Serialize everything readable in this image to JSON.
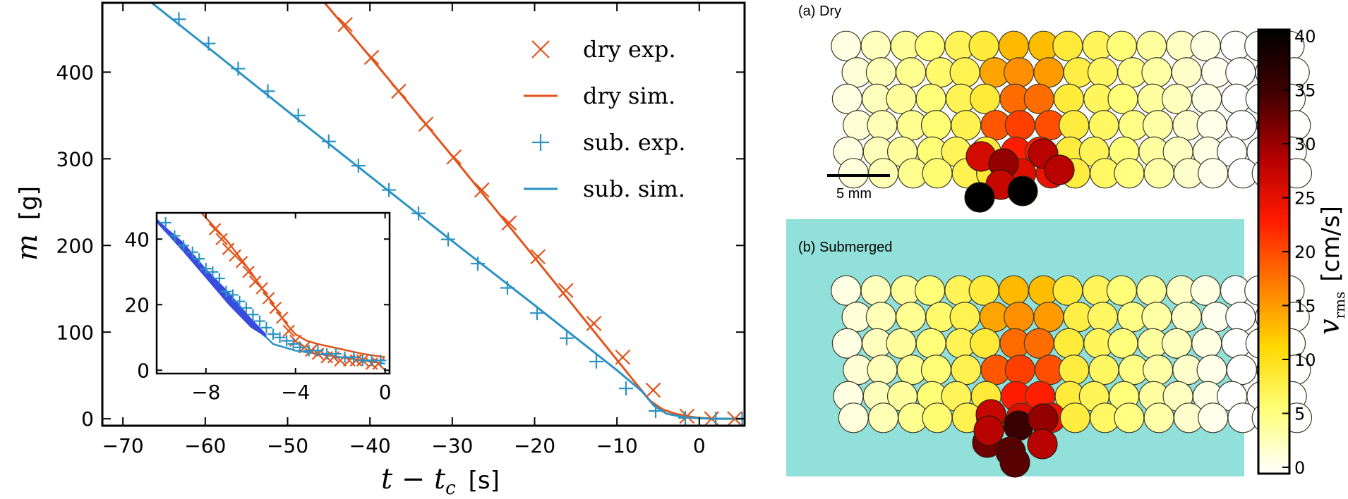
{
  "colors": {
    "dry": "#e2541b",
    "sub": "#2b93c4",
    "inset_band": "#3a4be0",
    "water": "#92e0da"
  },
  "chart_data": [
    {
      "type": "line",
      "xlabel_var": "t − t",
      "xlabel_sub": "c",
      "xlabel_unit": "[s]",
      "ylabel_var": "m",
      "ylabel_unit": "[g]",
      "xlim": [
        -72.5,
        5.5
      ],
      "ylim": [
        -8,
        480
      ],
      "xticks": [
        -70,
        -60,
        -50,
        -40,
        -30,
        -20,
        -10,
        0
      ],
      "xtick_labels": [
        "−70",
        "−60",
        "−50",
        "−40",
        "−30",
        "−20",
        "−10",
        "0"
      ],
      "yticks": [
        0,
        100,
        200,
        300,
        400
      ],
      "ytick_labels": [
        "0",
        "100",
        "200",
        "300",
        "400"
      ],
      "legend_position": "top-right",
      "series": [
        {
          "name": "dry exp.",
          "kind": "marker",
          "marker": "x",
          "color_key": "dry",
          "x": [
            -43,
            -39.8,
            -36.5,
            -33.2,
            -29.8,
            -26.4,
            -23.1,
            -19.6,
            -16.2,
            -12.8,
            -9.3,
            -5.6,
            -1.5,
            1.5,
            4.3
          ],
          "y": [
            455,
            417,
            378,
            340,
            302,
            264,
            226,
            187,
            148,
            110,
            71,
            33,
            3,
            0,
            0
          ]
        },
        {
          "name": "dry sim.",
          "kind": "line",
          "color_key": "dry",
          "x": [
            -45.5,
            -40,
            -30,
            -20,
            -10,
            -7.8,
            -6,
            -4.5,
            -3,
            -1.5,
            0,
            2,
            5.5
          ],
          "y": [
            480,
            418,
            303,
            186,
            68,
            42,
            21,
            11,
            6,
            3,
            1,
            0,
            0
          ]
        },
        {
          "name": "sub. exp.",
          "kind": "marker",
          "marker": "+",
          "color_key": "sub",
          "x": [
            -63.2,
            -59.6,
            -56,
            -52.4,
            -48.7,
            -45,
            -41.4,
            -37.7,
            -34.1,
            -30.5,
            -26.9,
            -23.3,
            -19.7,
            -16.1,
            -12.5,
            -8.9,
            -5.3,
            -1.7,
            2.0,
            5.2
          ],
          "y": [
            461,
            433,
            404,
            378,
            350,
            320,
            292,
            264,
            237,
            207,
            179,
            151,
            122,
            93,
            66,
            35,
            9,
            1,
            0,
            0
          ]
        },
        {
          "name": "sub. sim.",
          "kind": "line",
          "color_key": "sub",
          "x": [
            -66.5,
            -60,
            -50,
            -40,
            -30,
            -20,
            -10,
            -7,
            -5.5,
            -4,
            -2,
            0,
            2,
            5.5
          ],
          "y": [
            480,
            431,
            355,
            280,
            205,
            131,
            56,
            32,
            15,
            6,
            2,
            0.5,
            0,
            0
          ]
        }
      ]
    },
    {
      "type": "line",
      "role": "inset",
      "xlim": [
        -10.2,
        0.2
      ],
      "ylim": [
        -1,
        48
      ],
      "xticks": [
        -8,
        -4,
        0
      ],
      "xtick_labels": [
        "−8",
        "−4",
        "0"
      ],
      "yticks": [
        0,
        20,
        40
      ],
      "ytick_labels": [
        "0",
        "20",
        "40"
      ],
      "series": [
        {
          "name": "dry exp.",
          "kind": "marker",
          "marker": "x",
          "color_key": "dry",
          "x": [
            -7.6,
            -7.3,
            -7.0,
            -6.7,
            -6.4,
            -6.1,
            -5.8,
            -5.5,
            -5.2,
            -4.9,
            -4.6,
            -4.3,
            -4.0,
            -3.6,
            -3.3,
            -3.0,
            -2.6,
            -2.3,
            -2.0,
            -1.6,
            -1.3,
            -1.0,
            -0.6,
            -0.3
          ],
          "y": [
            43,
            40,
            37,
            35,
            33,
            30,
            27,
            25,
            22,
            19,
            16,
            12,
            9,
            7,
            6,
            5,
            4,
            4,
            3,
            3,
            3,
            3,
            2,
            2
          ]
        },
        {
          "name": "dry sim.",
          "kind": "line",
          "color_key": "dry",
          "x": [
            -8.2,
            -7,
            -6,
            -5,
            -4.4,
            -4,
            -3.5,
            -3,
            -2,
            -1,
            0
          ],
          "y": [
            48,
            39,
            30,
            20,
            14,
            11,
            9,
            8,
            6.5,
            5,
            4
          ]
        },
        {
          "name": "sub. exp.",
          "kind": "marker",
          "marker": "+",
          "color_key": "sub",
          "x": [
            -9.8,
            -9.4,
            -9.0,
            -8.6,
            -8.3,
            -8.0,
            -7.7,
            -7.4,
            -7.1,
            -6.8,
            -6.5,
            -6.2,
            -5.9,
            -5.6,
            -5.3,
            -5.0,
            -4.7,
            -4.4,
            -4.1,
            -3.8,
            -3.4,
            -3.0,
            -2.6,
            -2.2,
            -1.8,
            -1.4,
            -1.0,
            -0.6,
            -0.2
          ],
          "y": [
            45,
            41,
            38,
            36,
            34,
            31,
            30,
            28,
            24,
            23,
            21,
            19,
            17,
            15,
            13,
            11,
            10,
            9,
            8,
            7,
            6,
            6,
            5,
            5,
            4,
            4,
            3,
            3,
            3
          ]
        },
        {
          "name": "sub. sim.",
          "kind": "line",
          "color_key": "sub",
          "x": [
            -10.2,
            -9,
            -8,
            -7,
            -6,
            -5.3,
            -5,
            -4.5,
            -4,
            -3,
            -2,
            -1,
            0
          ],
          "y": [
            46,
            38,
            30,
            22,
            14,
            10,
            8,
            7,
            6,
            5,
            4,
            3,
            2
          ]
        },
        {
          "name": "",
          "kind": "band",
          "color_key": "inset_band",
          "x": [
            -10.2,
            -9,
            -8,
            -7,
            -6,
            -5.3
          ],
          "y_low": [
            45,
            36,
            28,
            20,
            13,
            10
          ],
          "y_high": [
            46,
            39,
            31,
            24,
            16,
            11
          ]
        }
      ]
    }
  ],
  "legend": [
    {
      "label": "dry exp.",
      "marker": "x",
      "color_key": "dry"
    },
    {
      "label": "dry sim.",
      "marker": "line",
      "color_key": "dry"
    },
    {
      "label": "sub. exp.",
      "marker": "+",
      "color_key": "sub"
    },
    {
      "label": "sub. sim.",
      "marker": "line",
      "color_key": "sub"
    }
  ],
  "panels": {
    "dry_label": "(a) Dry",
    "sub_label": "(b) Submerged",
    "scalebar_label": "5 mm"
  },
  "colorbar": {
    "label_var": "v",
    "label_sub": "rms",
    "label_unit": "[cm/s]",
    "min": 0,
    "max": 40,
    "ticks": [
      40,
      35,
      30,
      25,
      20,
      15,
      10,
      5,
      0
    ],
    "tick_labels": [
      "40",
      "35",
      "30",
      "25",
      "20",
      "15",
      "10",
      "5",
      "0"
    ],
    "stops": [
      "#ffffff",
      "#ffff7a",
      "#ffd800",
      "#ff7a00",
      "#ff1a00",
      "#b00000",
      "#400000",
      "#000000"
    ]
  }
}
